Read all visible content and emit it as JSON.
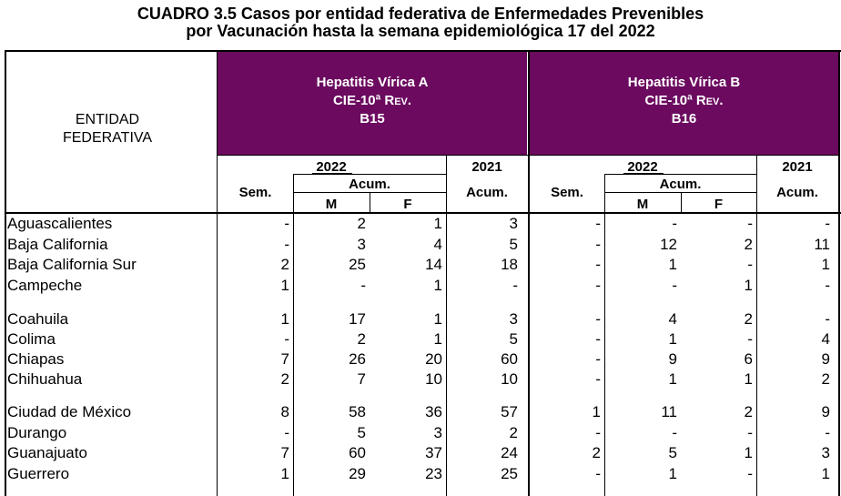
{
  "title": {
    "line1": "CUADRO 3.5  Casos por entidad federativa de Enfermedades Prevenibles",
    "line2": "por Vacunación hasta la semana epidemiológica 17 del 2022"
  },
  "header": {
    "entidad_line1": "ENTIDAD",
    "entidad_line2": "FEDERATIVA",
    "hep_a": {
      "name": "Hepatitis Vírica A",
      "cie": "CIE-10ª",
      "rev": "Rev.",
      "code": "B15"
    },
    "hep_b": {
      "name": "Hepatitis Vírica B",
      "cie": "CIE-10ª",
      "rev": "Rev.",
      "code": "B16"
    },
    "year_current": "2022",
    "year_prev": "2021",
    "sem": "Sem.",
    "acum": "Acum.",
    "m": "M",
    "f": "F"
  },
  "colors": {
    "header_bg": "#6b0a5f"
  },
  "rows": [
    {
      "entidad": "Aguascalientes",
      "a_sem": "-",
      "a_m": "2",
      "a_f": "1",
      "a_2021": "3",
      "b_sem": "-",
      "b_m": "-",
      "b_f": "-",
      "b_2021": "-"
    },
    {
      "entidad": "Baja California",
      "a_sem": "-",
      "a_m": "3",
      "a_f": "4",
      "a_2021": "5",
      "b_sem": "-",
      "b_m": "12",
      "b_f": "2",
      "b_2021": "11"
    },
    {
      "entidad": "Baja California Sur",
      "a_sem": "2",
      "a_m": "25",
      "a_f": "14",
      "a_2021": "18",
      "b_sem": "-",
      "b_m": "1",
      "b_f": "-",
      "b_2021": "1"
    },
    {
      "entidad": "Campeche",
      "a_sem": "1",
      "a_m": "-",
      "a_f": "1",
      "a_2021": "-",
      "b_sem": "-",
      "b_m": "-",
      "b_f": "1",
      "b_2021": "-"
    },
    {
      "entidad": "Coahuila",
      "a_sem": "1",
      "a_m": "17",
      "a_f": "1",
      "a_2021": "3",
      "b_sem": "-",
      "b_m": "4",
      "b_f": "2",
      "b_2021": "-"
    },
    {
      "entidad": "Colima",
      "a_sem": "-",
      "a_m": "2",
      "a_f": "1",
      "a_2021": "5",
      "b_sem": "-",
      "b_m": "1",
      "b_f": "-",
      "b_2021": "4"
    },
    {
      "entidad": "Chiapas",
      "a_sem": "7",
      "a_m": "26",
      "a_f": "20",
      "a_2021": "60",
      "b_sem": "-",
      "b_m": "9",
      "b_f": "6",
      "b_2021": "9"
    },
    {
      "entidad": "Chihuahua",
      "a_sem": "2",
      "a_m": "7",
      "a_f": "10",
      "a_2021": "10",
      "b_sem": "-",
      "b_m": "1",
      "b_f": "1",
      "b_2021": "2"
    },
    {
      "entidad": "Ciudad de México",
      "a_sem": "8",
      "a_m": "58",
      "a_f": "36",
      "a_2021": "57",
      "b_sem": "1",
      "b_m": "11",
      "b_f": "2",
      "b_2021": "9"
    },
    {
      "entidad": "Durango",
      "a_sem": "-",
      "a_m": "5",
      "a_f": "3",
      "a_2021": "2",
      "b_sem": "-",
      "b_m": "-",
      "b_f": "-",
      "b_2021": "-"
    },
    {
      "entidad": "Guanajuato",
      "a_sem": "7",
      "a_m": "60",
      "a_f": "37",
      "a_2021": "24",
      "b_sem": "2",
      "b_m": "5",
      "b_f": "1",
      "b_2021": "3"
    },
    {
      "entidad": "Guerrero",
      "a_sem": "1",
      "a_m": "29",
      "a_f": "23",
      "a_2021": "25",
      "b_sem": "-",
      "b_m": "1",
      "b_f": "-",
      "b_2021": "1"
    }
  ]
}
